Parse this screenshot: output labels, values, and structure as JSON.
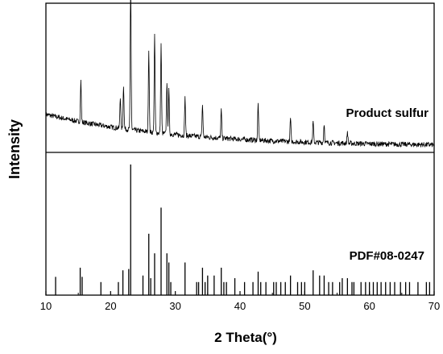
{
  "chart_data": {
    "type": "line",
    "xlabel": "2 Theta(°)",
    "ylabel": "Intensity",
    "xlim": [
      10,
      70
    ],
    "x_ticks": [
      "10",
      "20",
      "30",
      "40",
      "50",
      "60",
      "70"
    ],
    "y_ticks": [],
    "grid": false,
    "panels": [
      {
        "name": "Product sulfur",
        "label": "Product sulfur",
        "kind": "line",
        "background": 0.22,
        "ylim": [
          0,
          1
        ],
        "peaks": [
          {
            "x": 15.4,
            "y": 0.28
          },
          {
            "x": 21.5,
            "y": 0.22
          },
          {
            "x": 22.0,
            "y": 0.3
          },
          {
            "x": 23.1,
            "y": 1.0
          },
          {
            "x": 25.9,
            "y": 0.56
          },
          {
            "x": 26.8,
            "y": 0.66
          },
          {
            "x": 27.8,
            "y": 0.61
          },
          {
            "x": 28.7,
            "y": 0.36
          },
          {
            "x": 29.0,
            "y": 0.3
          },
          {
            "x": 31.5,
            "y": 0.26
          },
          {
            "x": 34.2,
            "y": 0.22
          },
          {
            "x": 37.1,
            "y": 0.19
          },
          {
            "x": 42.8,
            "y": 0.25
          },
          {
            "x": 47.8,
            "y": 0.16
          },
          {
            "x": 51.3,
            "y": 0.14
          },
          {
            "x": 53.0,
            "y": 0.13
          },
          {
            "x": 56.6,
            "y": 0.08
          }
        ]
      },
      {
        "name": "PDF#08-0247",
        "label": "PDF#08-0247",
        "kind": "stick",
        "ylim": [
          0,
          1
        ],
        "sticks": [
          {
            "x": 11.5,
            "y": 0.14
          },
          {
            "x": 15.3,
            "y": 0.21
          },
          {
            "x": 15.6,
            "y": 0.14
          },
          {
            "x": 18.5,
            "y": 0.1
          },
          {
            "x": 21.2,
            "y": 0.1
          },
          {
            "x": 21.9,
            "y": 0.19
          },
          {
            "x": 22.8,
            "y": 0.2
          },
          {
            "x": 23.1,
            "y": 1.0
          },
          {
            "x": 25.0,
            "y": 0.15
          },
          {
            "x": 25.9,
            "y": 0.47
          },
          {
            "x": 26.2,
            "y": 0.13
          },
          {
            "x": 26.8,
            "y": 0.32
          },
          {
            "x": 27.8,
            "y": 0.67
          },
          {
            "x": 28.7,
            "y": 0.32
          },
          {
            "x": 29.0,
            "y": 0.25
          },
          {
            "x": 29.3,
            "y": 0.1
          },
          {
            "x": 31.5,
            "y": 0.25
          },
          {
            "x": 33.3,
            "y": 0.1
          },
          {
            "x": 33.6,
            "y": 0.1
          },
          {
            "x": 34.2,
            "y": 0.21
          },
          {
            "x": 34.6,
            "y": 0.1
          },
          {
            "x": 35.0,
            "y": 0.15
          },
          {
            "x": 36.0,
            "y": 0.15
          },
          {
            "x": 37.1,
            "y": 0.21
          },
          {
            "x": 37.5,
            "y": 0.1
          },
          {
            "x": 37.9,
            "y": 0.1
          },
          {
            "x": 39.2,
            "y": 0.13
          },
          {
            "x": 40.7,
            "y": 0.1
          },
          {
            "x": 42.0,
            "y": 0.1
          },
          {
            "x": 42.8,
            "y": 0.18
          },
          {
            "x": 43.2,
            "y": 0.1
          },
          {
            "x": 44.0,
            "y": 0.1
          },
          {
            "x": 45.2,
            "y": 0.1
          },
          {
            "x": 45.6,
            "y": 0.1
          },
          {
            "x": 46.3,
            "y": 0.1
          },
          {
            "x": 47.0,
            "y": 0.1
          },
          {
            "x": 47.8,
            "y": 0.15
          },
          {
            "x": 48.9,
            "y": 0.1
          },
          {
            "x": 49.5,
            "y": 0.1
          },
          {
            "x": 50.0,
            "y": 0.1
          },
          {
            "x": 51.3,
            "y": 0.19
          },
          {
            "x": 52.3,
            "y": 0.15
          },
          {
            "x": 53.0,
            "y": 0.15
          },
          {
            "x": 53.7,
            "y": 0.1
          },
          {
            "x": 54.3,
            "y": 0.1
          },
          {
            "x": 55.4,
            "y": 0.1
          },
          {
            "x": 55.8,
            "y": 0.13
          },
          {
            "x": 56.6,
            "y": 0.13
          },
          {
            "x": 57.3,
            "y": 0.1
          },
          {
            "x": 57.6,
            "y": 0.1
          },
          {
            "x": 58.7,
            "y": 0.1
          },
          {
            "x": 59.4,
            "y": 0.1
          },
          {
            "x": 60.0,
            "y": 0.1
          },
          {
            "x": 60.6,
            "y": 0.1
          },
          {
            "x": 61.2,
            "y": 0.1
          },
          {
            "x": 61.8,
            "y": 0.1
          },
          {
            "x": 62.5,
            "y": 0.1
          },
          {
            "x": 63.2,
            "y": 0.1
          },
          {
            "x": 63.9,
            "y": 0.1
          },
          {
            "x": 64.8,
            "y": 0.1
          },
          {
            "x": 65.6,
            "y": 0.1
          },
          {
            "x": 66.2,
            "y": 0.1
          },
          {
            "x": 67.5,
            "y": 0.1
          },
          {
            "x": 68.8,
            "y": 0.1
          },
          {
            "x": 69.3,
            "y": 0.1
          }
        ]
      }
    ]
  }
}
